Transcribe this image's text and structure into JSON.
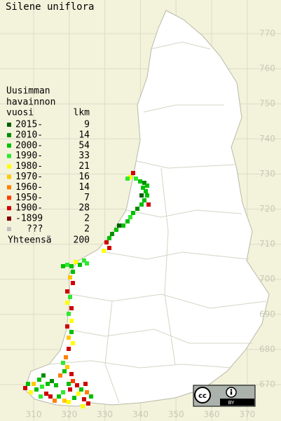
{
  "title": "Silene uniflora",
  "legend": {
    "heading": [
      "Uusimman",
      "havainnon"
    ],
    "columns": [
      "vuosi",
      "lkm"
    ],
    "rows": [
      {
        "period": "2015-",
        "count": 9,
        "color": "#005f00"
      },
      {
        "period": "2010-",
        "count": 14,
        "color": "#008c00"
      },
      {
        "period": "2000-",
        "count": 54,
        "color": "#00c000"
      },
      {
        "period": "1990-",
        "count": 33,
        "color": "#30e830"
      },
      {
        "period": "1980-",
        "count": 21,
        "color": "#ffff00"
      },
      {
        "period": "1970-",
        "count": 16,
        "color": "#ffc800"
      },
      {
        "period": "1960-",
        "count": 14,
        "color": "#ff8000"
      },
      {
        "period": "1950-",
        "count": 7,
        "color": "#ff3c00"
      },
      {
        "period": "1900-",
        "count": 28,
        "color": "#d00000"
      },
      {
        "period": "-1899",
        "count": 2,
        "color": "#800000"
      },
      {
        "period": "???",
        "count": 2,
        "color": "#c0c0c0"
      }
    ],
    "total": {
      "label": "Yhteensä",
      "count": 200
    }
  },
  "grid": {
    "y_labels": [
      "770",
      "760",
      "750",
      "740",
      "730",
      "720",
      "710",
      "700",
      "690",
      "680",
      "670"
    ],
    "x_labels": [
      "310",
      "320",
      "330",
      "340",
      "350",
      "360",
      "370"
    ]
  },
  "license": {
    "icon": "cc",
    "badge": "BY"
  }
}
